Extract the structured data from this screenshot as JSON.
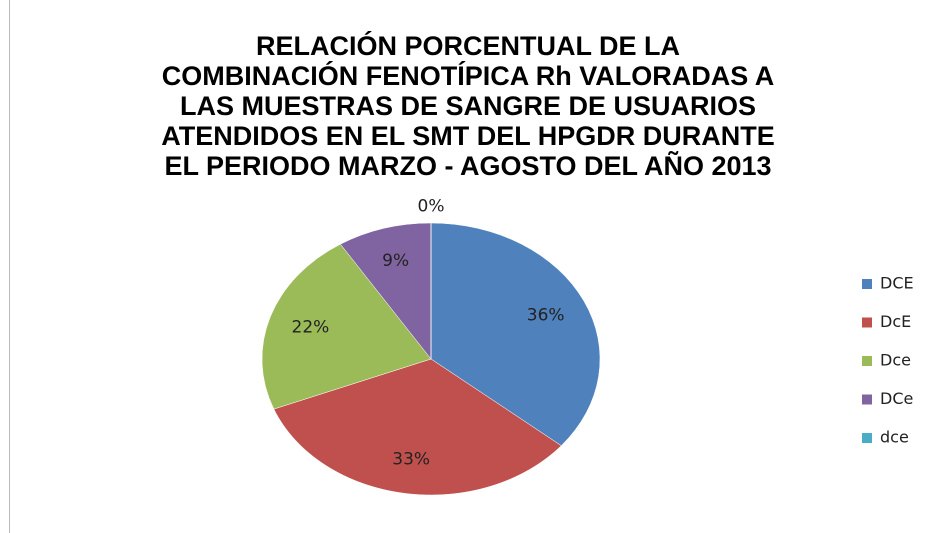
{
  "chart_data": {
    "type": "pie",
    "title": [
      "RELACIÓN PORCENTUAL DE  LA",
      "COMBINACIÓN FENOTÍPICA Rh VALORADAS A",
      "LAS MUESTRAS DE SANGRE DE USUARIOS",
      "ATENDIDOS EN EL SMT DEL HPGDR DURANTE",
      "EL PERIODO MARZO - AGOSTO DEL AÑO 2013"
    ],
    "categories": [
      "DCE",
      "DcE",
      "Dce",
      "DCe",
      "dce"
    ],
    "values": [
      36,
      33,
      22,
      9,
      0
    ],
    "value_labels": [
      "36%",
      "33%",
      "22%",
      "9%",
      "0%"
    ],
    "colors": [
      "#4f81bd",
      "#c0504d",
      "#9bbb59",
      "#8064a2",
      "#4bacc6"
    ],
    "legend": "right"
  }
}
